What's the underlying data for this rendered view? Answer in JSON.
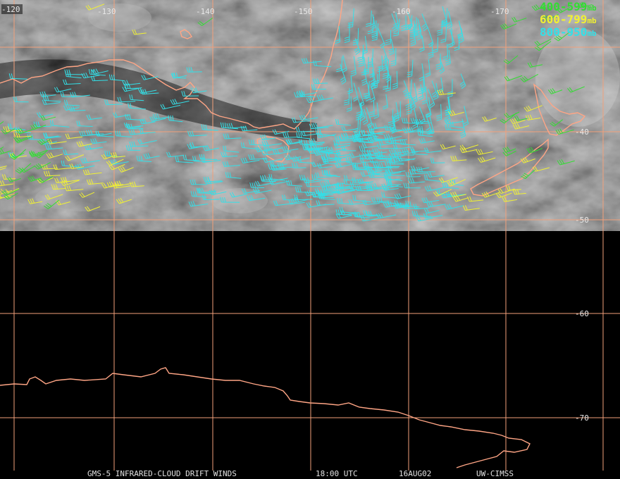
{
  "map": {
    "lon_labels": [
      "-120",
      "-130",
      "-140",
      "-150",
      "-160",
      "-170"
    ],
    "lat_labels": [
      "-40",
      "-50",
      "-60",
      "-70"
    ],
    "grid_color": "#f2a07a",
    "coast_color": "#ffa585"
  },
  "legend": {
    "items": [
      {
        "range": "400-599",
        "unit": "mb",
        "color": "#33dd33"
      },
      {
        "range": "600-799",
        "unit": "mb",
        "color": "#f0f033"
      },
      {
        "range": "800-950",
        "unit": "mb",
        "color": "#33e0e8"
      }
    ]
  },
  "footer": {
    "product": "GMS-5 INFRARED-CLOUD DRIFT WINDS",
    "time": "18:00 UTC",
    "date": "16AUG02",
    "source": "UW-CIMSS"
  }
}
